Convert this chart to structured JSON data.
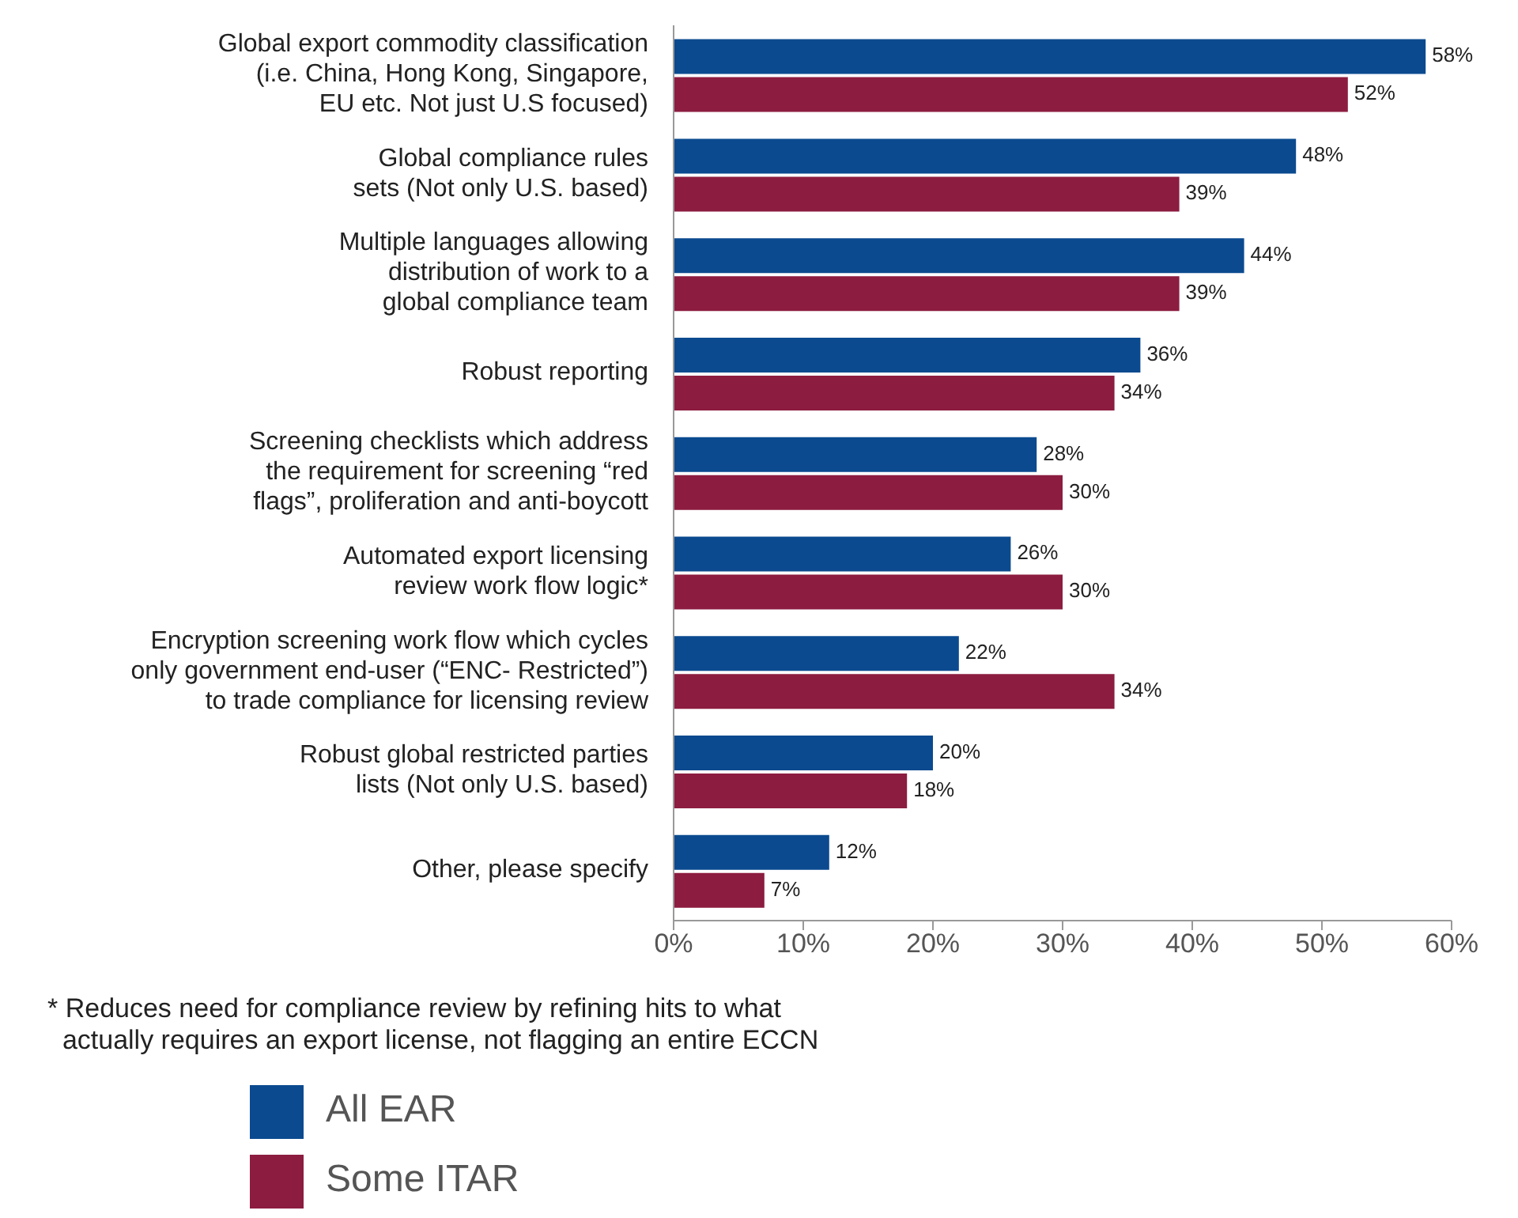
{
  "chart_data": {
    "type": "bar",
    "orientation": "horizontal",
    "categories": [
      "Global export commodity classification\n(i.e. China, Hong Kong, Singapore,\nEU etc. Not just U.S focused)",
      "Global compliance rules\nsets (Not only U.S. based)",
      "Multiple languages allowing\ndistribution of work to a\nglobal compliance team",
      "Robust reporting",
      "Screening checklists which address\nthe requirement for screening “red\nflags”, proliferation and anti-boycott",
      "Automated export licensing\nreview work flow logic*",
      "Encryption screening work flow which cycles\nonly government end-user (“ENC- Restricted”)\nto trade compliance for licensing review",
      "Robust global restricted parties\nlists (Not only U.S. based)",
      "Other, please specify"
    ],
    "series": [
      {
        "name": "All EAR",
        "color": "#0b4a8f",
        "values": [
          58,
          48,
          44,
          36,
          28,
          26,
          22,
          20,
          12
        ],
        "value_labels": [
          "58%",
          "48%",
          "44%",
          "36%",
          "28%",
          "26%",
          "22%",
          "20%",
          "12%"
        ]
      },
      {
        "name": "Some ITAR",
        "color": "#8c1c40",
        "values": [
          52,
          39,
          39,
          34,
          30,
          30,
          34,
          18,
          7
        ],
        "value_labels": [
          "52%",
          "39%",
          "39%",
          "34%",
          "30%",
          "30%",
          "34%",
          "18%",
          "7%"
        ]
      }
    ],
    "xlim": [
      0,
      60
    ],
    "xticks": [
      {
        "value": 0,
        "label": "0%"
      },
      {
        "value": 10,
        "label": "10%"
      },
      {
        "value": 20,
        "label": "20%"
      },
      {
        "value": 30,
        "label": "30%"
      },
      {
        "value": 40,
        "label": "40%"
      },
      {
        "value": 50,
        "label": "50%"
      },
      {
        "value": 60,
        "label": "60%"
      }
    ],
    "grid": false,
    "legend": "bottom left",
    "annotations": [
      "* Reduces need for compliance review by refining hits to what\n  actually requires an export license, not flagging an entire ECCN"
    ]
  }
}
